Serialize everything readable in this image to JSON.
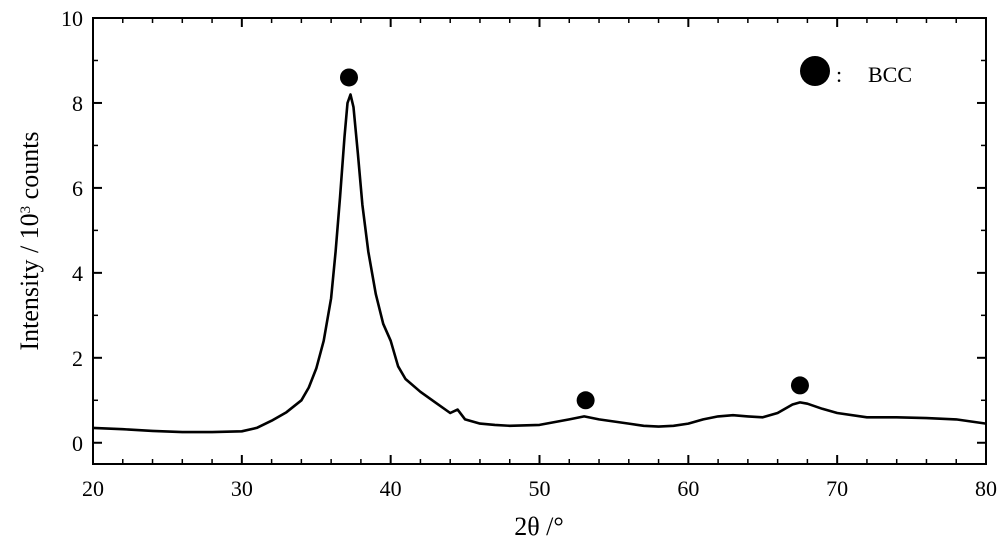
{
  "chart_data": {
    "type": "line",
    "xlabel": "2θ /°",
    "ylabel_main": "Intensity / 10",
    "ylabel_sup": "3",
    "ylabel_tail": " counts",
    "xlim": [
      20,
      80
    ],
    "ylim": [
      -0.5,
      10
    ],
    "x_ticks": [
      20,
      30,
      40,
      50,
      60,
      70,
      80
    ],
    "y_ticks": [
      0,
      2,
      4,
      6,
      8,
      10
    ],
    "grid": false,
    "series": [
      {
        "color": "#000000",
        "x": [
          20,
          22,
          24,
          26,
          28,
          30,
          31,
          32,
          33,
          34,
          34.5,
          35,
          35.5,
          36,
          36.3,
          36.6,
          36.9,
          37.1,
          37.3,
          37.5,
          37.8,
          38.1,
          38.5,
          39,
          39.5,
          40,
          40.5,
          41,
          42,
          43,
          44,
          44.5,
          45,
          46,
          47,
          48,
          50,
          52,
          53,
          54,
          55,
          56,
          57,
          58,
          59,
          60,
          61,
          62,
          63,
          64,
          65,
          66,
          67,
          67.5,
          68,
          69,
          70,
          72,
          74,
          76,
          78,
          80
        ],
        "y": [
          0.35,
          0.32,
          0.28,
          0.25,
          0.25,
          0.27,
          0.35,
          0.52,
          0.72,
          1.0,
          1.3,
          1.75,
          2.4,
          3.4,
          4.5,
          5.8,
          7.2,
          8.0,
          8.2,
          7.9,
          6.8,
          5.6,
          4.5,
          3.5,
          2.8,
          2.4,
          1.8,
          1.5,
          1.2,
          0.95,
          0.7,
          0.78,
          0.55,
          0.45,
          0.42,
          0.4,
          0.42,
          0.55,
          0.62,
          0.55,
          0.5,
          0.45,
          0.4,
          0.38,
          0.4,
          0.45,
          0.55,
          0.62,
          0.65,
          0.62,
          0.6,
          0.7,
          0.9,
          0.95,
          0.92,
          0.8,
          0.7,
          0.6,
          0.6,
          0.58,
          0.55,
          0.45
        ]
      }
    ],
    "markers": {
      "label": "BCC",
      "points": [
        {
          "x": 37.2,
          "y": 8.6
        },
        {
          "x": 53.1,
          "y": 1.0
        },
        {
          "x": 67.5,
          "y": 1.35
        }
      ]
    },
    "legend": {
      "position": "top-right",
      "separator": ":",
      "label": "BCC"
    }
  }
}
